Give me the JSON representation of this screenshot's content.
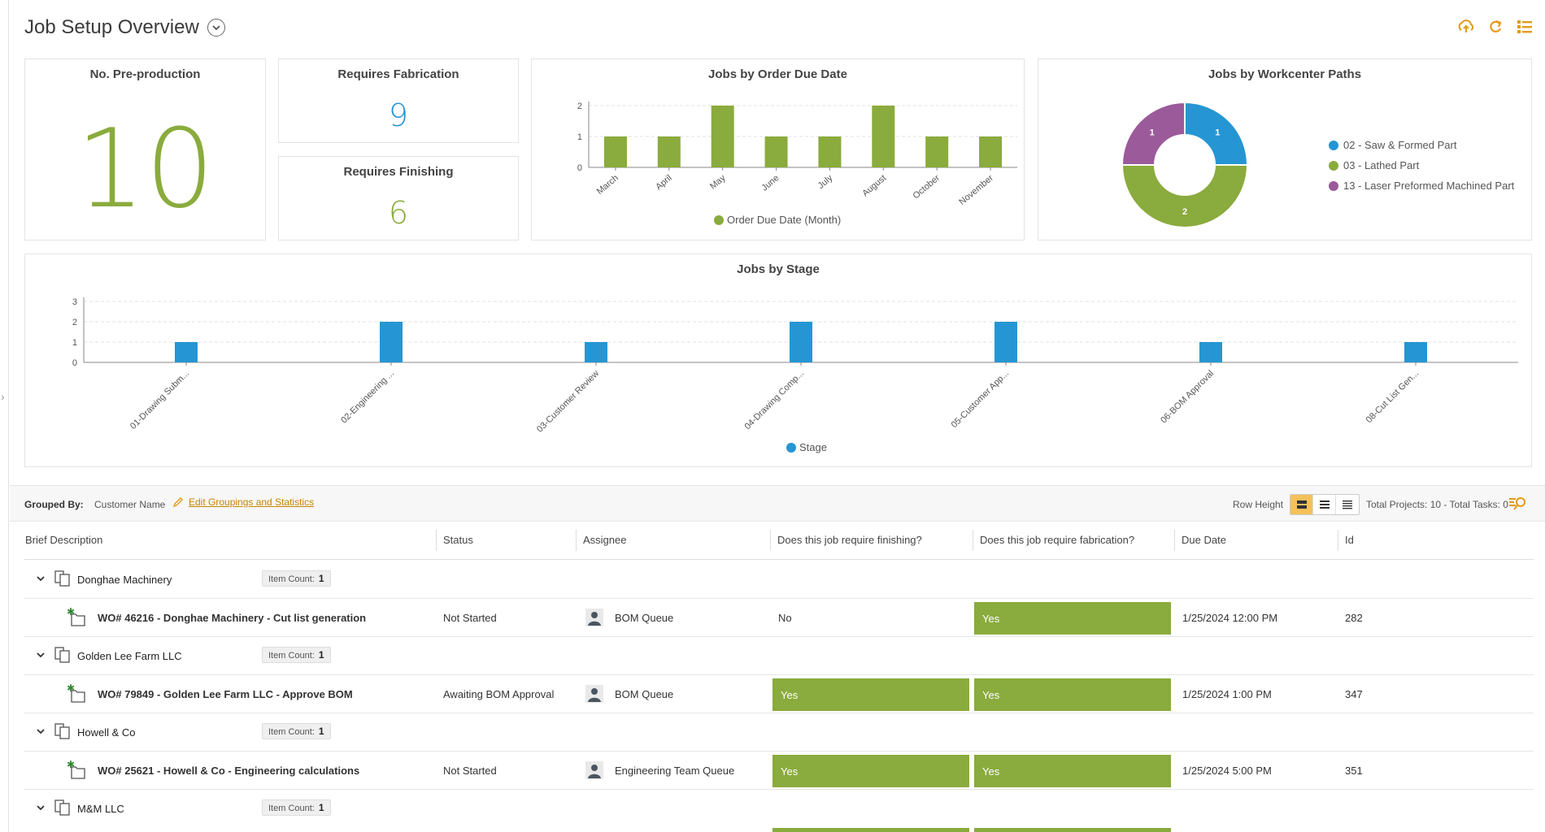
{
  "page": {
    "title": "Job Setup Overview"
  },
  "kpis": {
    "pre_production": {
      "title": "No. Pre-production",
      "value": "10",
      "color": "#8aab3d"
    },
    "fabrication": {
      "title": "Requires Fabrication",
      "value": "9",
      "color": "#2596d3"
    },
    "finishing": {
      "title": "Requires Finishing",
      "value": "6",
      "color": "#8aab3d"
    }
  },
  "chart_data": [
    {
      "type": "bar",
      "title": "Jobs by Order Due Date",
      "categories": [
        "March",
        "April",
        "May",
        "June",
        "July",
        "August",
        "October",
        "November"
      ],
      "series": [
        {
          "name": "Order Due Date (Month)",
          "values": [
            1,
            1,
            2,
            1,
            1,
            2,
            1,
            1
          ],
          "color": "#8aab3d"
        }
      ],
      "ylim": [
        0,
        2
      ],
      "yticks": [
        0,
        1,
        2
      ],
      "grid": true,
      "legend": "bottom"
    },
    {
      "type": "pie",
      "title": "Jobs by Workcenter Paths",
      "donut": true,
      "slices": [
        {
          "label": "02 - Saw & Formed Part",
          "value": 1,
          "color": "#2596d3"
        },
        {
          "label": "03 - Lathed Part",
          "value": 2,
          "color": "#8aab3d"
        },
        {
          "label": "13 - Laser Preformed Machined Part",
          "value": 1,
          "color": "#9b5a9a"
        }
      ],
      "legend": "right"
    },
    {
      "type": "bar",
      "title": "Jobs by Stage",
      "categories": [
        "01-Drawing Subm...",
        "02-Engineering ...",
        "03-Customer Review",
        "04-Drawing Comp...",
        "05-Customer App...",
        "06-BOM Approval",
        "08-Cut List Gen..."
      ],
      "series": [
        {
          "name": "Stage",
          "values": [
            1,
            2,
            1,
            2,
            2,
            1,
            1
          ],
          "color": "#2596d3"
        }
      ],
      "ylim": [
        0,
        3
      ],
      "yticks": [
        0,
        1,
        2,
        3
      ],
      "grid": true,
      "legend": "bottom"
    }
  ],
  "toolbar": {
    "grouped_by_label": "Grouped By:",
    "grouped_by_value": "Customer Name",
    "edit_link": "Edit Groupings and Statistics",
    "row_height_label": "Row Height",
    "totals": "Total Projects: 10 - Total Tasks: 0"
  },
  "columns": [
    "Brief Description",
    "Status",
    "Assignee",
    "Does this job require finishing?",
    "Does this job require fabrication?",
    "Due Date",
    "Id"
  ],
  "count_label": "Item Count:",
  "groups": [
    {
      "name": "Donghae Machinery",
      "count": "1",
      "row": {
        "desc": "WO# 46216 - Donghae Machinery - Cut list generation",
        "status": "Not Started",
        "assignee": "BOM Queue",
        "finishing": "No",
        "fabrication": "Yes",
        "due": "1/25/2024 12:00 PM",
        "id": "282"
      }
    },
    {
      "name": "Golden Lee Farm LLC",
      "count": "1",
      "row": {
        "desc": "WO# 79849 - Golden Lee Farm LLC - Approve BOM",
        "status": "Awaiting BOM Approval",
        "assignee": "BOM Queue",
        "finishing": "Yes",
        "fabrication": "Yes",
        "due": "1/25/2024 1:00 PM",
        "id": "347"
      }
    },
    {
      "name": "Howell & Co",
      "count": "1",
      "row": {
        "desc": "WO# 25621 - Howell & Co - Engineering calculations",
        "status": "Not Started",
        "assignee": "Engineering Team Queue",
        "finishing": "Yes",
        "fabrication": "Yes",
        "due": "1/25/2024 5:00 PM",
        "id": "351"
      }
    },
    {
      "name": "M&M LLC",
      "count": "1"
    }
  ]
}
